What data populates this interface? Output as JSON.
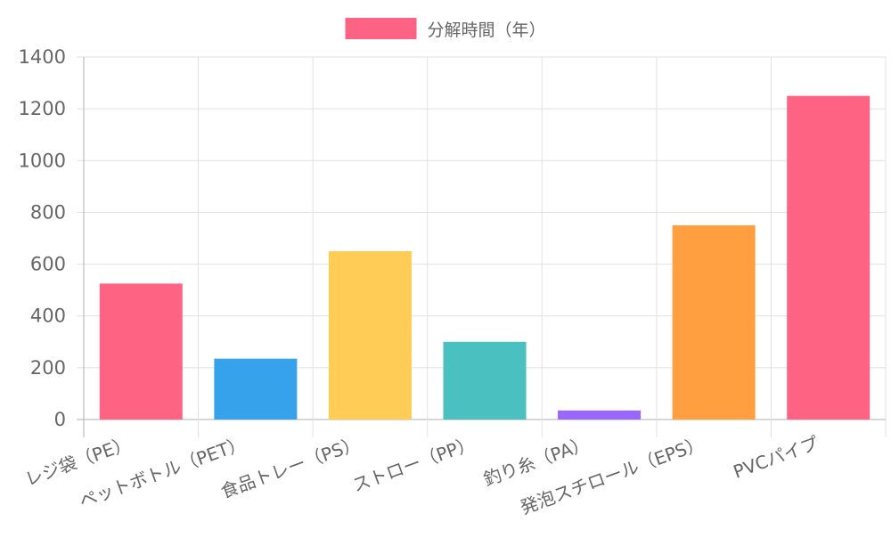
{
  "chart_data": {
    "type": "bar",
    "categories": [
      "レジ袋（PE）",
      "ペットボトル（PET）",
      "食品トレー（PS）",
      "ストロー（PP）",
      "釣り糸（PA）",
      "発泡スチロール（EPS）",
      "PVCパイプ"
    ],
    "series": [
      {
        "name": "分解時間（年）",
        "values": [
          525,
          235,
          650,
          300,
          35,
          750,
          1250
        ],
        "colors": [
          "#ff6384",
          "#36a2eb",
          "#ffcd56",
          "#4bc0c0",
          "#9966ff",
          "#ff9f40",
          "#ff6384"
        ]
      }
    ],
    "ylim": [
      0,
      1400
    ],
    "yticks": [
      0,
      200,
      400,
      600,
      800,
      1000,
      1200,
      1400
    ],
    "grid": true,
    "legend_position": "top"
  }
}
